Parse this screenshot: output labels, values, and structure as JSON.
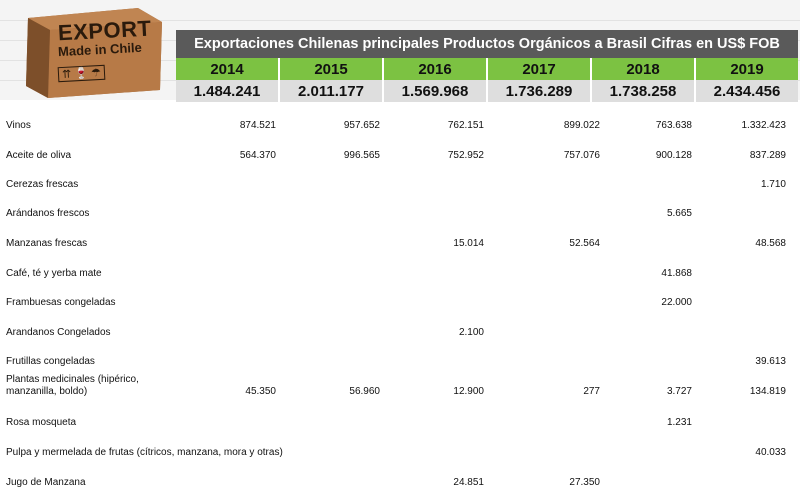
{
  "logo": {
    "line1": "EXPORT",
    "line2": "Made in Chile",
    "symbols": "⇈ 🍷 ☂"
  },
  "table": {
    "title": "Exportaciones Chilenas principales Productos Orgánicos a Brasil Cifras en US$ FOB",
    "years": [
      "2014",
      "2015",
      "2016",
      "2017",
      "2018",
      "2019"
    ],
    "totals": [
      "1.484.241",
      "2.011.177",
      "1.569.968",
      "1.736.289",
      "1.738.258",
      "2.434.456"
    ],
    "rows": [
      {
        "label": "Vinos",
        "values": [
          "874.521",
          "957.652",
          "762.151",
          "899.022",
          "763.638",
          "1.332.423"
        ]
      },
      {
        "label": "Aceite de oliva",
        "values": [
          "564.370",
          "996.565",
          "752.952",
          "757.076",
          "900.128",
          "837.289"
        ]
      },
      {
        "label": "Cerezas frescas",
        "values": [
          "",
          "",
          "",
          "",
          "",
          "1.710"
        ]
      },
      {
        "label": "Arándanos frescos",
        "values": [
          "",
          "",
          "",
          "",
          "5.665",
          ""
        ]
      },
      {
        "label": "Manzanas frescas",
        "values": [
          "",
          "",
          "15.014",
          "52.564",
          "",
          "48.568"
        ]
      },
      {
        "label": "Café, té y yerba mate",
        "values": [
          "",
          "",
          "",
          "",
          "41.868",
          ""
        ]
      },
      {
        "label": "Frambuesas congeladas",
        "values": [
          "",
          "",
          "",
          "",
          "22.000",
          ""
        ]
      },
      {
        "label": "Arandanos Congelados",
        "values": [
          "",
          "",
          "2.100",
          "",
          "",
          ""
        ]
      },
      {
        "label": "Frutillas congeladas",
        "values": [
          "",
          "",
          "",
          "",
          "",
          "39.613"
        ]
      },
      {
        "label": "Plantas medicinales (hipérico, manzanilla, boldo)",
        "values": [
          "45.350",
          "56.960",
          "12.900",
          "277",
          "3.727",
          "134.819"
        ]
      },
      {
        "label": "Rosa mosqueta",
        "values": [
          "",
          "",
          "",
          "",
          "1.231",
          ""
        ]
      },
      {
        "label": "Pulpa y mermelada de frutas (cítricos, manzana, mora y otras)",
        "values": [
          "",
          "",
          "",
          "",
          "",
          "40.033"
        ]
      },
      {
        "label": "Jugo de Manzana",
        "values": [
          "",
          "",
          "24.851",
          "27.350",
          "",
          ""
        ]
      }
    ]
  },
  "colors": {
    "title_bg": "#5a5a5a",
    "year_bg": "#7cc242",
    "total_bg": "#dedede"
  }
}
